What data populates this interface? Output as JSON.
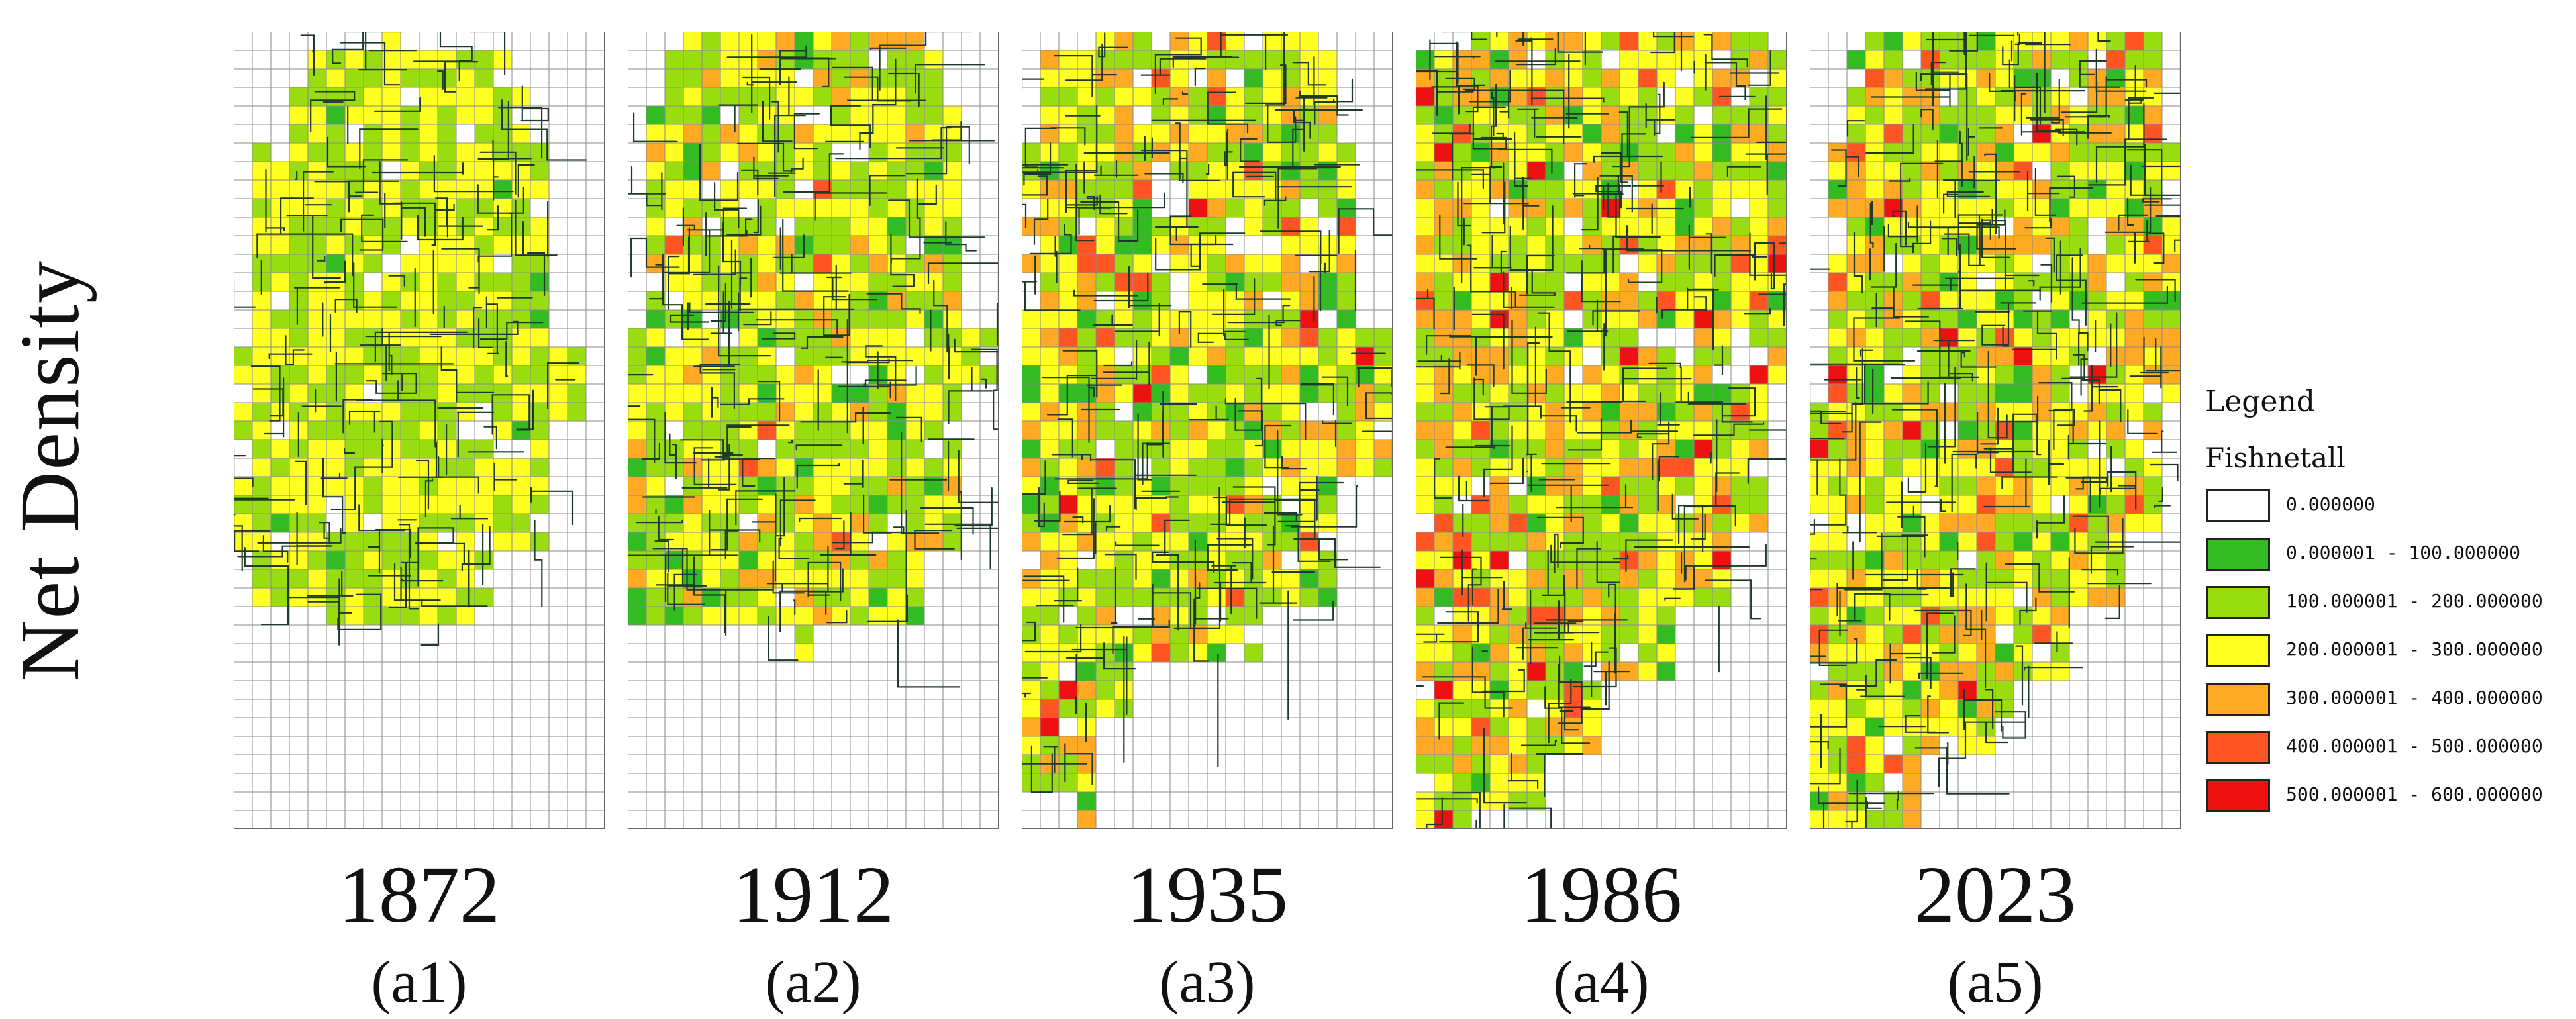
{
  "figure": {
    "side_title": "Net Density"
  },
  "panels": [
    {
      "year": "1872",
      "label": "(a1)"
    },
    {
      "year": "1912",
      "label": "(a2)"
    },
    {
      "year": "1935",
      "label": "(a3)"
    },
    {
      "year": "1986",
      "label": "(a4)"
    },
    {
      "year": "2023",
      "label": "(a5)"
    }
  ],
  "legend": {
    "title": "Legend",
    "layer": "Fishnetall",
    "classes": [
      {
        "label": "0.000000",
        "color": "#ffffff"
      },
      {
        "label": "0.000001 - 100.000000",
        "color": "#33bb22"
      },
      {
        "label": "100.000001 - 200.000000",
        "color": "#99dd11"
      },
      {
        "label": "200.000001 - 300.000000",
        "color": "#ffff22"
      },
      {
        "label": "300.000001 - 400.000000",
        "color": "#ffaa22"
      },
      {
        "label": "400.000001 - 500.000000",
        "color": "#ff5522"
      },
      {
        "label": "500.000001 - 600.000000",
        "color": "#ee1111"
      }
    ]
  }
}
